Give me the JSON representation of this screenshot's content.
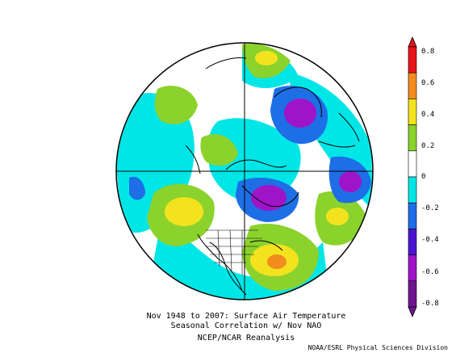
{
  "map": {
    "projection": "north-polar-stereographic",
    "variable": "surface-air-temperature-correlation"
  },
  "caption": {
    "line1": "Nov 1948 to 2007: Surface Air Temperature",
    "line2": "Seasonal Correlation w/ Nov NAO",
    "line3": "NCEP/NCAR Reanalysis"
  },
  "credit": "NOAA/ESRL Physical Sciences Division",
  "colorbar": {
    "ticks": [
      "0.8",
      "0.6",
      "0.4",
      "0.2",
      "0",
      "-0.2",
      "-0.4",
      "-0.6",
      "-0.8"
    ],
    "colors": [
      {
        "level": "0.7",
        "hex": "#e8141c"
      },
      {
        "level": "0.5",
        "hex": "#f28c1e"
      },
      {
        "level": "0.3",
        "hex": "#f2e31e"
      },
      {
        "level": "0.1",
        "hex": "#8cd22d"
      },
      {
        "level": "0",
        "hex": "#ffffff"
      },
      {
        "level": "-0.1",
        "hex": "#00e6e6"
      },
      {
        "level": "-0.3",
        "hex": "#1e6ee6"
      },
      {
        "level": "-0.5",
        "hex": "#4b14d2"
      },
      {
        "level": "-0.7",
        "hex": "#a014c8"
      },
      {
        "level": "-0.9",
        "hex": "#6e148c"
      }
    ]
  }
}
